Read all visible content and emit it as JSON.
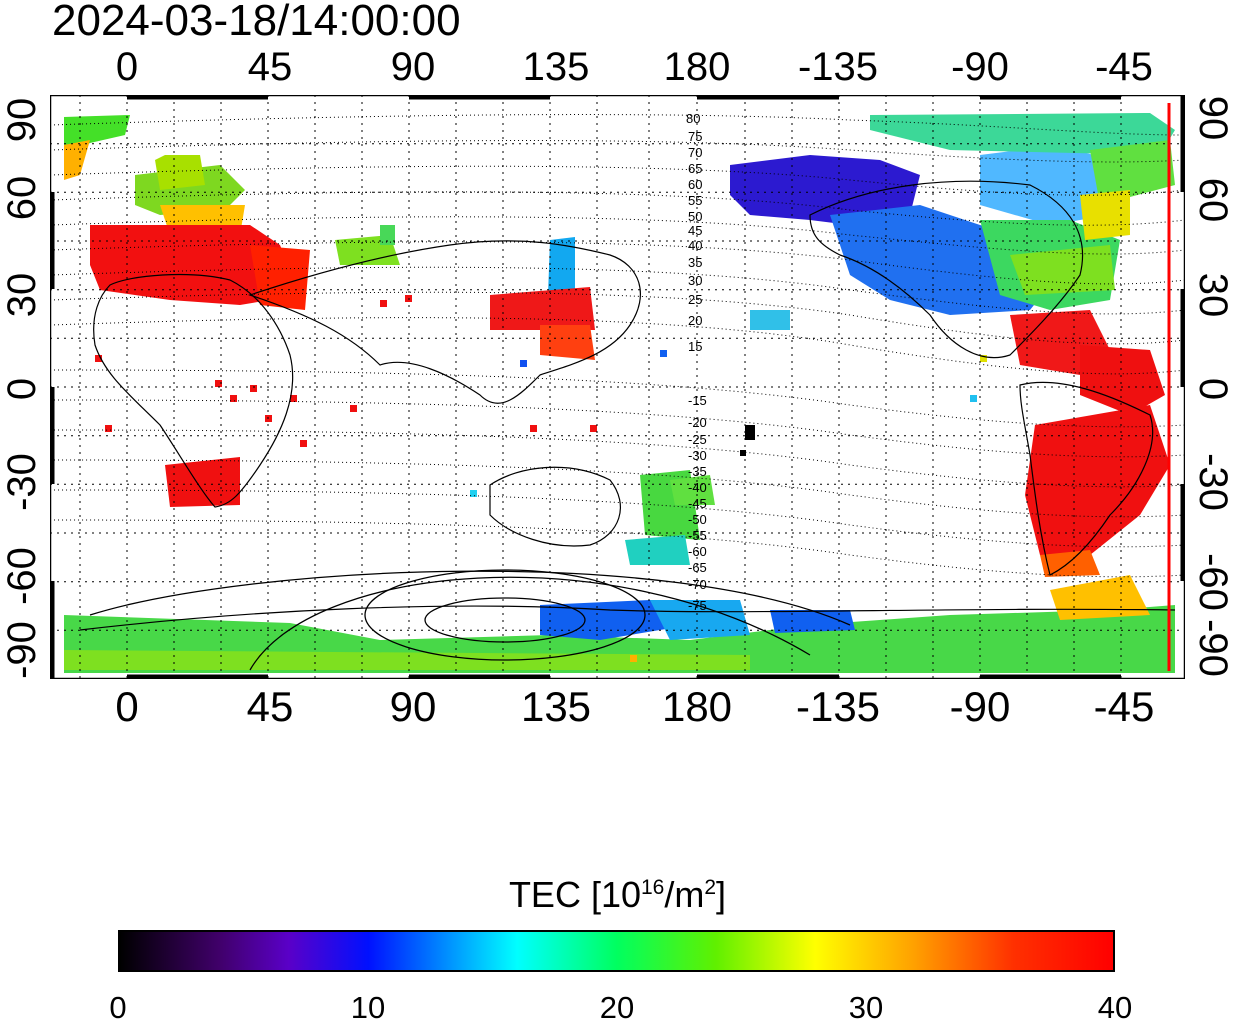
{
  "timestamp": "2024-03-18/14:00:00",
  "map": {
    "lon_ticks": [
      "0",
      "45",
      "90",
      "135",
      "180",
      "-135",
      "-90",
      "-45"
    ],
    "lat_ticks_left": [
      "90",
      "60",
      "30",
      "0",
      "-30",
      "-60",
      "-90"
    ],
    "lat_ticks_right": [
      "90",
      "60",
      "30",
      "0",
      "-30",
      "-60",
      "-90"
    ],
    "lon_range": [
      -20,
      340
    ],
    "lat_range": [
      -90,
      90
    ],
    "grid": "dotted 15-degree",
    "contour_labels_north": [
      "80",
      "75",
      "70",
      "65",
      "60",
      "55",
      "50",
      "45",
      "40",
      "35",
      "30",
      "25",
      "20",
      "15"
    ],
    "contour_labels_south": [
      "-15",
      "-20",
      "-25",
      "-30",
      "-35",
      "-40",
      "-45",
      "-50",
      "-55",
      "-60",
      "-65",
      "-70",
      "-75"
    ],
    "terminator_line_color": "#ff0000"
  },
  "colorbar": {
    "title_prefix": "TEC  [10",
    "title_exp1": "16",
    "title_mid": "/m",
    "title_exp2": "2",
    "title_suffix": "]",
    "ticks": [
      "0",
      "10",
      "20",
      "30",
      "40"
    ],
    "range": [
      0,
      40
    ],
    "colors": [
      "#000000",
      "#5a00c8",
      "#0010ff",
      "#00ffff",
      "#00ff60",
      "#ffff00",
      "#ff0000"
    ]
  }
}
